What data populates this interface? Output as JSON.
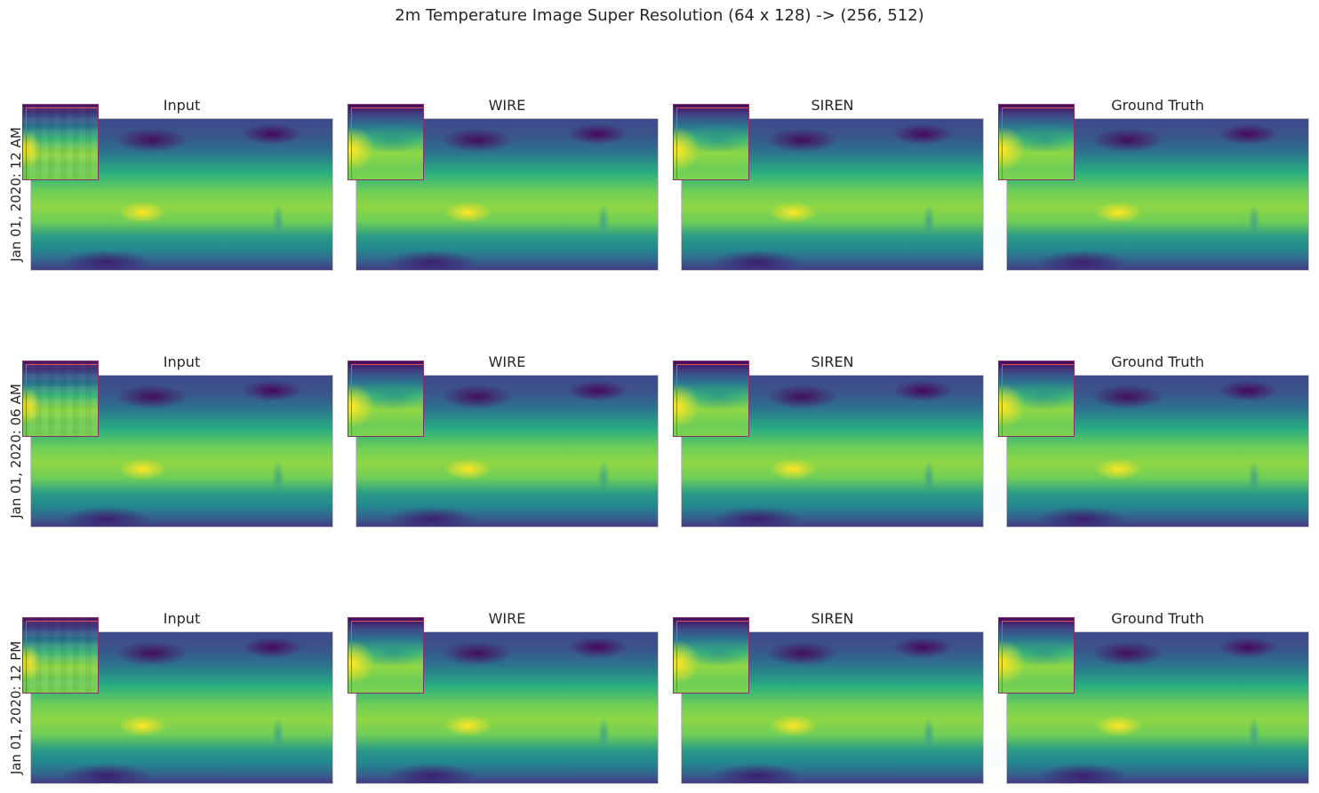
{
  "title": "2m Temperature Image Super Resolution (64 x 128) -> (256, 512)",
  "columns": [
    "Input",
    "WIRE",
    "SIREN",
    "Ground Truth"
  ],
  "rows": [
    "Jan 01, 2020: 12 AM",
    "Jan 01, 2020: 06 AM",
    "Jan 01, 2020: 12 PM"
  ],
  "colormap": "viridis",
  "inset_border_color": "#e05252"
}
